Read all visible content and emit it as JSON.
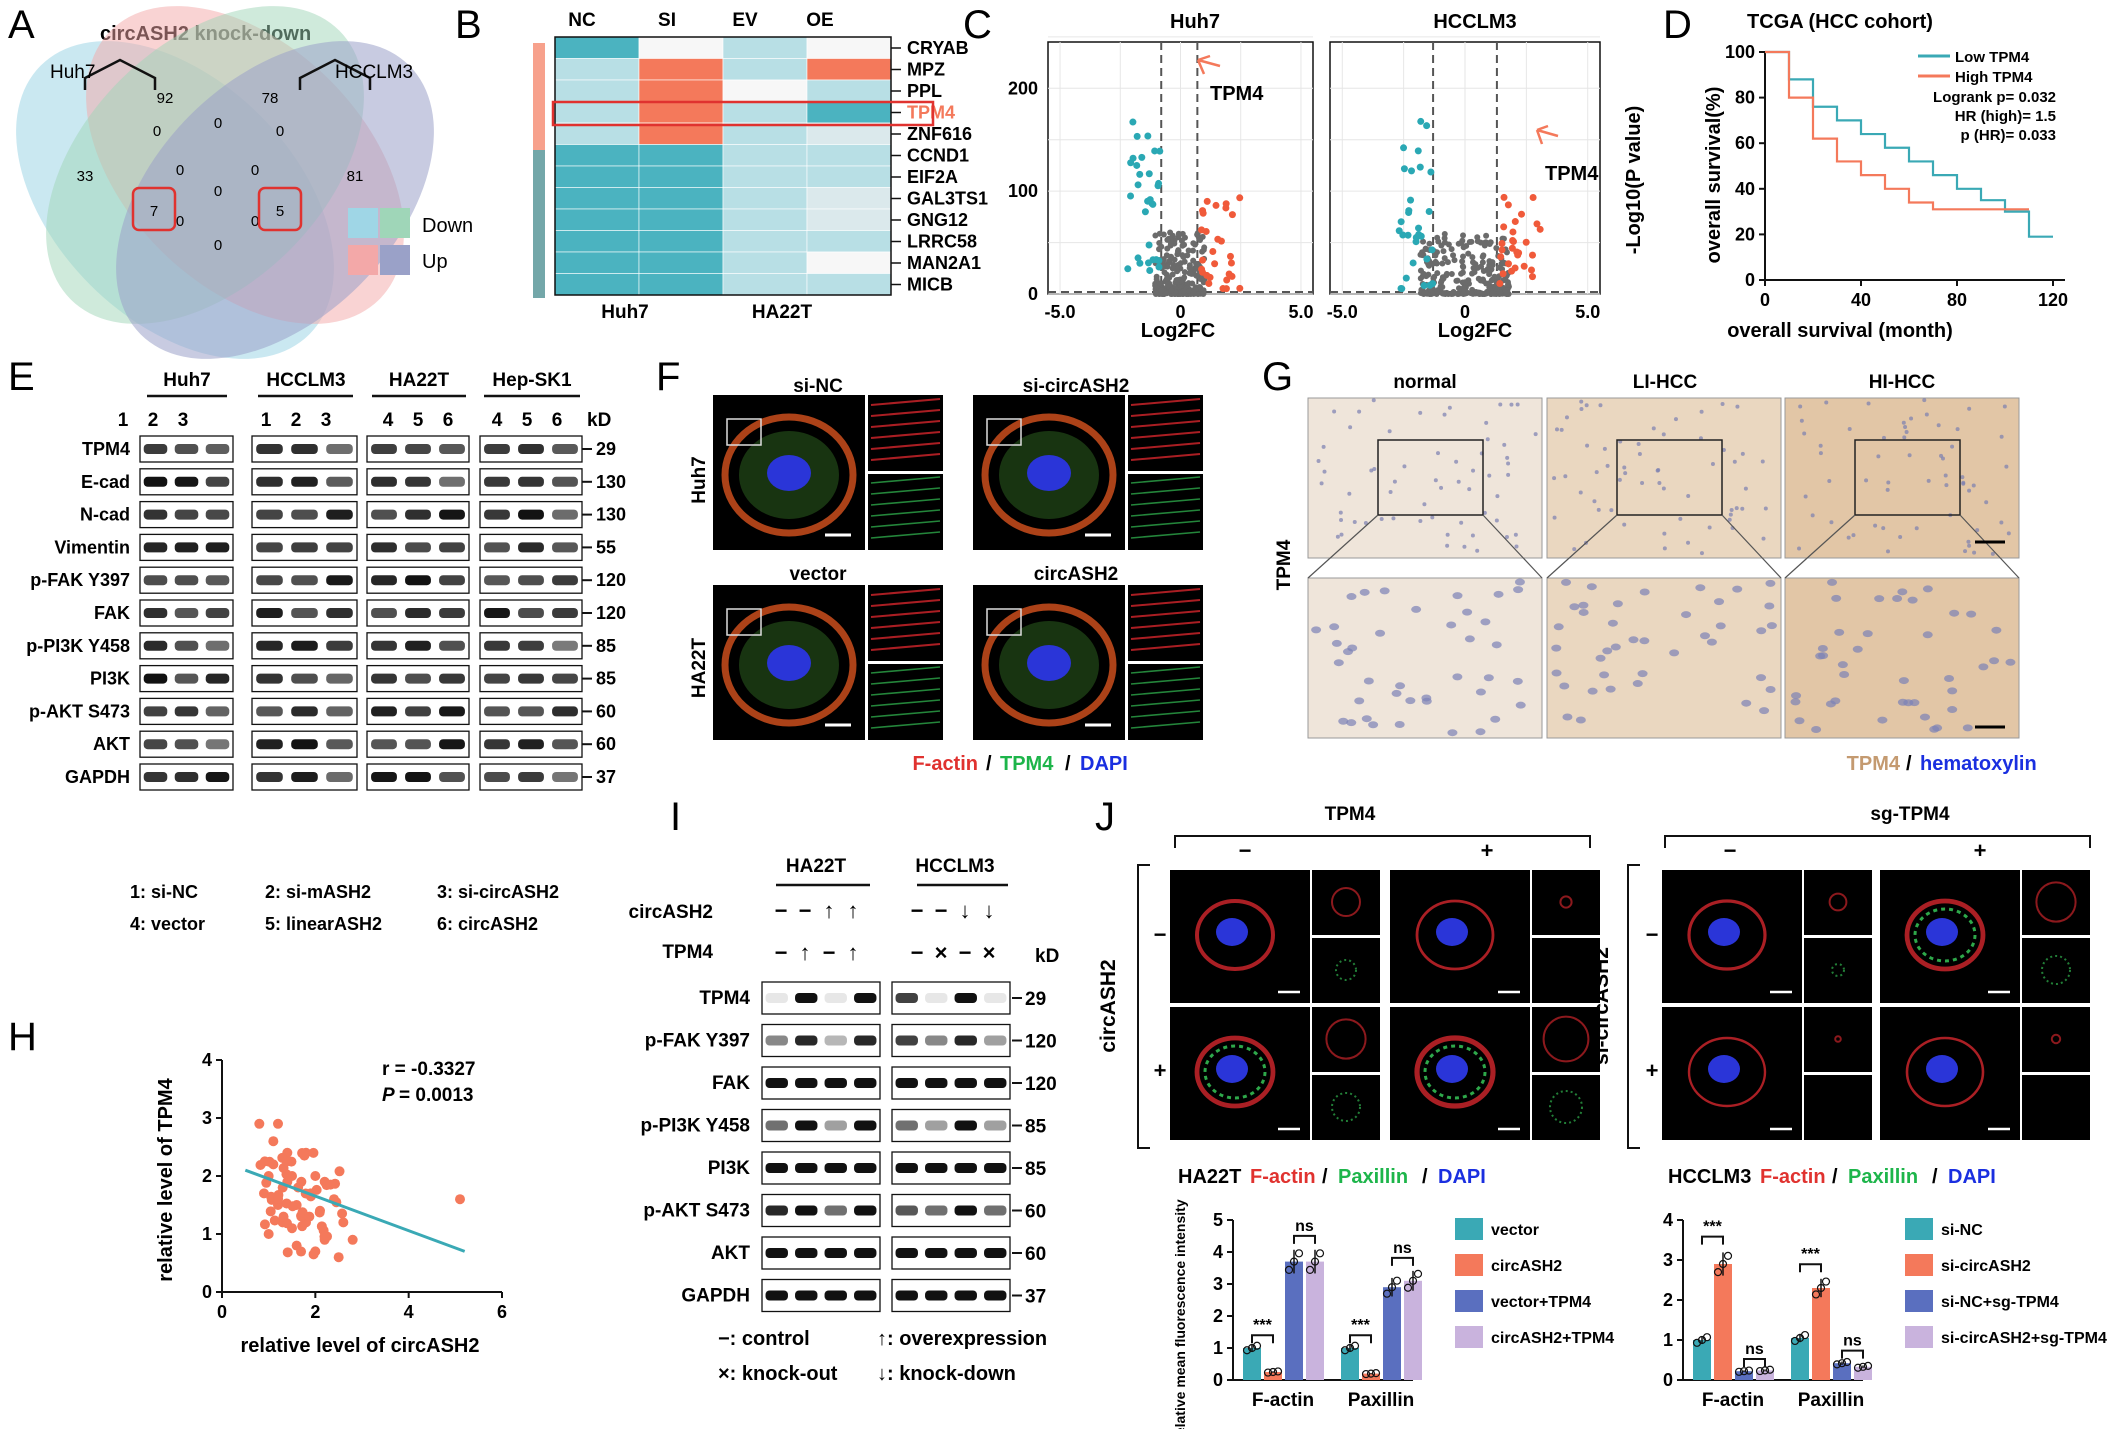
{
  "panels": {
    "A": {
      "letter": "A",
      "title": "circASH2 knock-down",
      "sets": [
        "Huh7",
        "HCCLM3"
      ],
      "counts": [
        "92",
        "78",
        "33",
        "81",
        "0",
        "0",
        "0",
        "0",
        "0",
        "0",
        "0",
        "0",
        "7",
        "5",
        "0"
      ],
      "legend": [
        "Down",
        "Up"
      ]
    },
    "B": {
      "letter": "B",
      "columns": [
        "NC",
        "SI",
        "EV",
        "OE"
      ],
      "genes": [
        "CRYAB",
        "MPZ",
        "PPL",
        "TPM4",
        "ZNF616",
        "CCND1",
        "EIF2A",
        "GAL3TS1",
        "GNG12",
        "LRRC58",
        "MAN2A1",
        "MICB"
      ],
      "groups": [
        "Huh7",
        "HA22T"
      ]
    },
    "C": {
      "letter": "C",
      "titles": [
        "Huh7",
        "HCCLM3"
      ],
      "xlabel": "Log2FC",
      "ylabel": "-Log10(P value)",
      "yticks": [
        "0",
        "100",
        "200"
      ],
      "xticks": [
        "-5.0",
        "0",
        "5.0"
      ],
      "highlight": "TPM4"
    },
    "D": {
      "letter": "D",
      "title": "TCGA (HCC cohort)",
      "xlabel": "overall survival (month)",
      "ylabel": "overall survival(%)",
      "legend": [
        "Low TPM4",
        "High TPM4"
      ],
      "stats": [
        "Logrank p= 0.032",
        "HR (high)= 1.5",
        "p (HR)= 0.033"
      ],
      "xticks": [
        "0",
        "40",
        "80",
        "120"
      ],
      "yticks": [
        "0",
        "20",
        "40",
        "60",
        "80",
        "100"
      ]
    },
    "E": {
      "letter": "E",
      "groups": [
        "Huh7",
        "HCCLM3",
        "HA22T",
        "Hep-SK1"
      ],
      "lanes": [
        "1",
        "2",
        "3",
        "1",
        "2",
        "3",
        "4",
        "5",
        "6",
        "4",
        "5",
        "6"
      ],
      "kd": "kD",
      "proteins": [
        "TPM4",
        "E-cad",
        "N-cad",
        "Vimentin",
        "p-FAK Y397",
        "FAK",
        "p-PI3K Y458",
        "PI3K",
        "p-AKT S473",
        "AKT",
        "GAPDH"
      ],
      "sizes": [
        "29",
        "130",
        "130",
        "55",
        "120",
        "120",
        "85",
        "85",
        "60",
        "60",
        "37"
      ],
      "key": [
        "1: si-NC",
        "2: si-mASH2",
        "3: si-circASH2",
        "4: vector",
        "5: linearASH2",
        "6: circASH2"
      ]
    },
    "F": {
      "letter": "F",
      "cols_top": [
        "si-NC",
        "si-circASH2"
      ],
      "cols_bottom": [
        "vector",
        "circASH2"
      ],
      "rows": [
        "Huh7",
        "HA22T"
      ],
      "stain": [
        "F-actin",
        "TPM4",
        "DAPI"
      ]
    },
    "G": {
      "letter": "G",
      "cols": [
        "normal",
        "LI-HCC",
        "HI-HCC"
      ],
      "row": "TPM4",
      "stain": [
        "TPM4",
        "hematoxylin"
      ]
    },
    "H": {
      "letter": "H",
      "xlabel": "relative level of circASH2",
      "ylabel": "relative level of TPM4",
      "r": "r = -0.3327",
      "p": "= 0.0013",
      "p_label": "P",
      "xticks": [
        "0",
        "2",
        "4",
        "6"
      ],
      "yticks": [
        "0",
        "1",
        "2",
        "3",
        "4"
      ]
    },
    "I": {
      "letter": "I",
      "groups": [
        "HA22T",
        "HCCLM3"
      ],
      "row_labels": [
        "circASH2",
        "TPM4"
      ],
      "circ_marks": [
        "−",
        "−",
        "↑",
        "↑",
        "−",
        "−",
        "↓",
        "↓"
      ],
      "tpm4_marks": [
        "−",
        "↑",
        "−",
        "↑",
        "−",
        "×",
        "−",
        "×"
      ],
      "kd": "kD",
      "proteins": [
        "TPM4",
        "p-FAK Y397",
        "FAK",
        "p-PI3K Y458",
        "PI3K",
        "p-AKT S473",
        "AKT",
        "GAPDH"
      ],
      "sizes": [
        "29",
        "120",
        "120",
        "85",
        "85",
        "60",
        "60",
        "37"
      ],
      "key": [
        "−: control",
        "↑: overexpression",
        "×: knock-out",
        "↓: knock-down"
      ]
    },
    "J": {
      "letter": "J",
      "groups": [
        "TPM4",
        "sg-TPM4"
      ],
      "signs": [
        "−",
        "+",
        "−",
        "+"
      ],
      "rows": [
        "circASH2",
        "si-circASH2"
      ],
      "row_signs": [
        "−",
        "+",
        "−",
        "+"
      ],
      "cap_left": [
        "HA22T",
        "F-actin",
        "Paxillin",
        "DAPI"
      ],
      "cap_right": [
        "HCCLM3",
        "F-actin",
        "Paxillin",
        "DAPI"
      ],
      "ylabel": "relative mean fluorescence intensity",
      "xcats": [
        "F-actin",
        "Paxillin"
      ],
      "yticks": [
        "0",
        "1",
        "2",
        "3",
        "4",
        "5"
      ],
      "legend_left": [
        "vector",
        "circASH2",
        "vector+TPM4",
        "circASH2+TPM4"
      ],
      "legend_right": [
        "si-NC",
        "si-circASH2",
        "si-NC+sg-TPM4",
        "si-circASH2+sg-TPM4"
      ],
      "sig_left": [
        "***",
        "ns",
        "***",
        "ns"
      ],
      "sig_right": [
        "***",
        "ns",
        "***",
        "ns"
      ]
    }
  },
  "chart_data": [
    {
      "type": "bar",
      "categories": [
        "F-actin",
        "Paxillin"
      ],
      "series": [
        {
          "name": "vector",
          "values": [
            1.0,
            1.0
          ]
        },
        {
          "name": "circASH2",
          "values": [
            0.25,
            0.2
          ]
        },
        {
          "name": "vector+TPM4",
          "values": [
            3.7,
            2.9
          ]
        },
        {
          "name": "circASH2+TPM4",
          "values": [
            3.7,
            3.1
          ]
        }
      ],
      "ylim": [
        0,
        5
      ],
      "colors": [
        "#3aa9b5",
        "#f4795b",
        "#5a6fbf",
        "#c9b3dd"
      ]
    },
    {
      "type": "bar",
      "categories": [
        "F-actin",
        "Paxillin"
      ],
      "series": [
        {
          "name": "si-NC",
          "values": [
            1.0,
            1.05
          ]
        },
        {
          "name": "si-circASH2",
          "values": [
            2.9,
            2.3
          ]
        },
        {
          "name": "si-NC+sg-TPM4",
          "values": [
            0.22,
            0.42
          ]
        },
        {
          "name": "si-circASH2+sg-TPM4",
          "values": [
            0.24,
            0.33
          ]
        }
      ],
      "ylim": [
        0,
        4
      ],
      "colors": [
        "#3aa9b5",
        "#f4795b",
        "#5a6fbf",
        "#c9b3dd"
      ]
    },
    {
      "type": "line",
      "series": [
        {
          "name": "Low TPM4",
          "x": [
            0,
            10,
            20,
            30,
            40,
            50,
            60,
            70,
            80,
            90,
            100,
            110,
            120
          ],
          "y": [
            100,
            88,
            76,
            70,
            64,
            58,
            52,
            46,
            40,
            35,
            30,
            19,
            19
          ]
        },
        {
          "name": "High TPM4",
          "x": [
            0,
            10,
            20,
            30,
            40,
            50,
            60,
            70,
            80,
            90,
            100,
            110
          ],
          "y": [
            100,
            80,
            62,
            52,
            46,
            40,
            34,
            31,
            31,
            31,
            31,
            31
          ]
        }
      ],
      "xlim": [
        0,
        125
      ],
      "ylim": [
        0,
        100
      ],
      "colors": [
        "#3aa9b5",
        "#f4795b"
      ]
    },
    {
      "type": "scatter",
      "x": [
        0.8,
        1.0,
        1.1,
        1.2,
        1.3,
        1.4,
        1.5,
        1.6,
        1.7,
        1.8,
        1.9,
        2.0,
        2.1,
        2.2,
        2.4,
        2.6,
        2.8,
        1.0,
        1.2,
        1.5,
        1.8,
        2.0,
        1.3,
        1.6,
        2.2,
        1.1,
        0.9,
        1.4,
        1.7,
        2.5,
        5.1
      ],
      "y": [
        2.9,
        2.0,
        2.6,
        2.9,
        1.8,
        2.4,
        2.0,
        1.5,
        1.9,
        1.2,
        1.7,
        2.0,
        1.4,
        0.9,
        1.6,
        1.2,
        0.9,
        1.0,
        1.5,
        1.1,
        2.4,
        0.7,
        1.2,
        0.8,
        1.9,
        2.2,
        1.7,
        1.9,
        1.3,
        0.6,
        1.6
      ],
      "xlim": [
        0,
        6
      ],
      "ylim": [
        0,
        4
      ],
      "fit": [
        [
          0.5,
          2.1
        ],
        [
          5.2,
          0.7
        ]
      ]
    }
  ]
}
